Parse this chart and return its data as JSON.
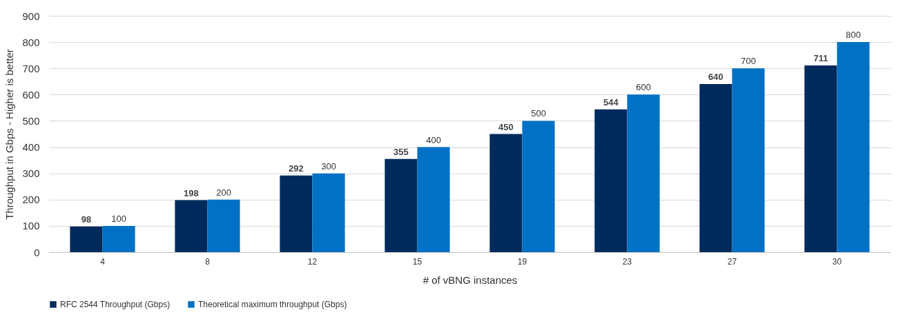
{
  "chart_data": {
    "type": "bar",
    "xlabel": "# of vBNG instances",
    "ylabel": "Throughput in Gbps - Higher is better",
    "categories": [
      "4",
      "8",
      "12",
      "15",
      "19",
      "23",
      "27",
      "30"
    ],
    "series": [
      {
        "name": "RFC 2544 Throughput (Gbps)",
        "color": "#002a5c",
        "values": [
          98,
          198,
          292,
          355,
          450,
          544,
          640,
          711
        ]
      },
      {
        "name": "Theoretical maximum throughput (Gbps)",
        "color": "#0071c5",
        "values": [
          100,
          200,
          300,
          400,
          500,
          600,
          700,
          800
        ]
      }
    ],
    "ylim": [
      0,
      900
    ],
    "yticks": [
      0,
      100,
      200,
      300,
      400,
      500,
      600,
      700,
      800,
      900
    ],
    "grid": "y",
    "legend": "bottom",
    "data_labels": true
  }
}
